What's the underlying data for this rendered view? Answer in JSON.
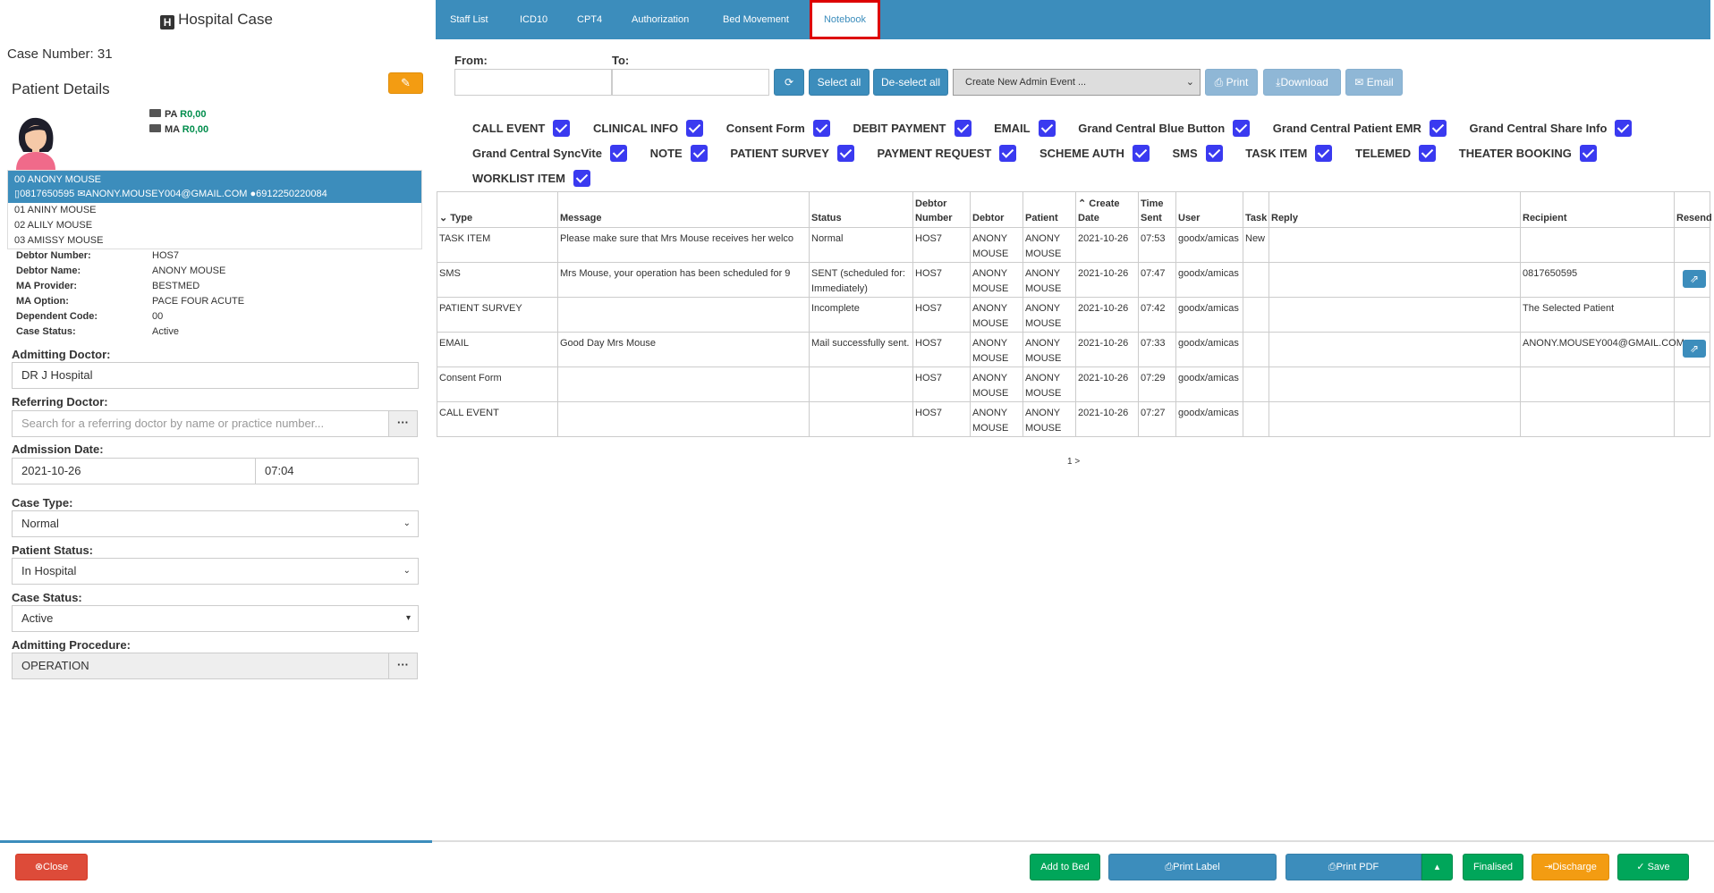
{
  "left": {
    "title": "Hospital Case",
    "case_number": "Case Number: 31",
    "patient_details_title": "Patient Details",
    "pa_label": "PA",
    "pa_amount": "R0,00",
    "ma_label": "MA",
    "ma_amount": "R0,00",
    "active_patient": {
      "name": "00 ANONY MOUSE",
      "phone": "0817650595",
      "email": "ANONY.MOUSEY004@GMAIL.COM",
      "id": "6912250220084"
    },
    "patients": [
      "01 ANINY MOUSE",
      "02 ALILY MOUSE",
      "03 AMISSY MOUSE"
    ],
    "details": [
      {
        "label": "Debtor Number:",
        "value": "HOS7"
      },
      {
        "label": "Debtor Name:",
        "value": "ANONY MOUSE"
      },
      {
        "label": "MA Provider:",
        "value": "BESTMED"
      },
      {
        "label": "MA Option:",
        "value": "PACE FOUR ACUTE"
      },
      {
        "label": "Dependent Code:",
        "value": "00"
      },
      {
        "label": "Case Status:",
        "value": "Active"
      }
    ],
    "admitting_doctor_label": "Admitting Doctor:",
    "admitting_doctor_value": "DR J Hospital",
    "referring_doctor_label": "Referring Doctor:",
    "referring_doctor_placeholder": "Search for a referring doctor by name or practice number...",
    "admission_date_label": "Admission Date:",
    "admission_date": "2021-10-26",
    "admission_time": "07:04",
    "case_type_label": "Case Type:",
    "case_type_value": "Normal",
    "patient_status_label": "Patient Status:",
    "patient_status_value": "In Hospital",
    "case_status_label": "Case Status:",
    "case_status_value": "Active",
    "admitting_procedure_label": "Admitting Procedure:",
    "admitting_procedure_value": "OPERATION"
  },
  "tabs": [
    "Staff List",
    "ICD10",
    "CPT4",
    "Authorization",
    "Bed Movement",
    "Notebook"
  ],
  "filters": {
    "from_label": "From:",
    "to_label": "To:",
    "select_all": "Select all",
    "deselect_all": "De-select all",
    "admin_event": "Create New Admin Event ...",
    "print": "Print",
    "download": "Download",
    "email": "Email"
  },
  "event_types": [
    [
      "CALL EVENT",
      "CLINICAL INFO",
      "Consent Form",
      "DEBIT PAYMENT",
      "EMAIL",
      "Grand Central Blue Button",
      "Grand Central Patient EMR",
      "Grand Central Share Info"
    ],
    [
      "Grand Central SyncVite",
      "NOTE",
      "PATIENT SURVEY",
      "PAYMENT REQUEST",
      "SCHEME AUTH",
      "SMS",
      "TASK ITEM",
      "TELEMED",
      "THEATER BOOKING"
    ],
    [
      "WORKLIST ITEM"
    ]
  ],
  "table": {
    "headers": [
      "Type",
      "Message",
      "Status",
      "Debtor Number",
      "Debtor",
      "Patient",
      "Create Date",
      "Time Sent",
      "User",
      "Task",
      "Reply",
      "Recipient",
      "Resend"
    ],
    "rows": [
      {
        "type": "TASK ITEM",
        "message": "Please make sure that Mrs Mouse receives her welco",
        "status": "Normal",
        "debtor_number": "HOS7",
        "debtor": "ANONY MOUSE",
        "patient": "ANONY MOUSE",
        "create_date": "2021-10-26",
        "time_sent": "07:53",
        "user": "goodx/amicas",
        "task": "New",
        "reply": "",
        "recipient": "",
        "resend": false
      },
      {
        "type": "SMS",
        "message": "Mrs Mouse, your operation has been scheduled for 9",
        "status": "SENT (scheduled for: Immediately)",
        "debtor_number": "HOS7",
        "debtor": "ANONY MOUSE",
        "patient": "ANONY MOUSE",
        "create_date": "2021-10-26",
        "time_sent": "07:47",
        "user": "goodx/amicas",
        "task": "",
        "reply": "",
        "recipient": "0817650595",
        "resend": true
      },
      {
        "type": "PATIENT SURVEY",
        "message": "",
        "status": "Incomplete",
        "debtor_number": "HOS7",
        "debtor": "ANONY MOUSE",
        "patient": "ANONY MOUSE",
        "create_date": "2021-10-26",
        "time_sent": "07:42",
        "user": "goodx/amicas",
        "task": "",
        "reply": "",
        "recipient": "The Selected Patient",
        "resend": false
      },
      {
        "type": "EMAIL",
        "message": "Good Day Mrs Mouse",
        "status": "Mail successfully sent.",
        "debtor_number": "HOS7",
        "debtor": "ANONY MOUSE",
        "patient": "ANONY MOUSE",
        "create_date": "2021-10-26",
        "time_sent": "07:33",
        "user": "goodx/amicas",
        "task": "",
        "reply": "",
        "recipient": "ANONY.MOUSEY004@GMAIL.COM",
        "resend": true
      },
      {
        "type": "Consent Form",
        "message": "",
        "status": "",
        "debtor_number": "HOS7",
        "debtor": "ANONY MOUSE",
        "patient": "ANONY MOUSE",
        "create_date": "2021-10-26",
        "time_sent": "07:29",
        "user": "goodx/amicas",
        "task": "",
        "reply": "",
        "recipient": "",
        "resend": false
      },
      {
        "type": "CALL EVENT",
        "message": "",
        "status": "",
        "debtor_number": "HOS7",
        "debtor": "ANONY MOUSE",
        "patient": "ANONY MOUSE",
        "create_date": "2021-10-26",
        "time_sent": "07:27",
        "user": "goodx/amicas",
        "task": "",
        "reply": "",
        "recipient": "",
        "resend": false
      }
    ],
    "pager": "1 >"
  },
  "footer": {
    "close": "Close",
    "add_to_bed": "Add to Bed",
    "print_label": "Print Label",
    "print_pdf": "Print PDF",
    "finalised": "Finalised",
    "discharge": "Discharge",
    "save": "Save"
  },
  "colors": {
    "primary": "#3c8dbc",
    "success": "#00a65a",
    "warning": "#f39c12",
    "danger": "#dd4b39",
    "checkbox": "#3a3af0",
    "active_tab_border": "#dd0000"
  }
}
